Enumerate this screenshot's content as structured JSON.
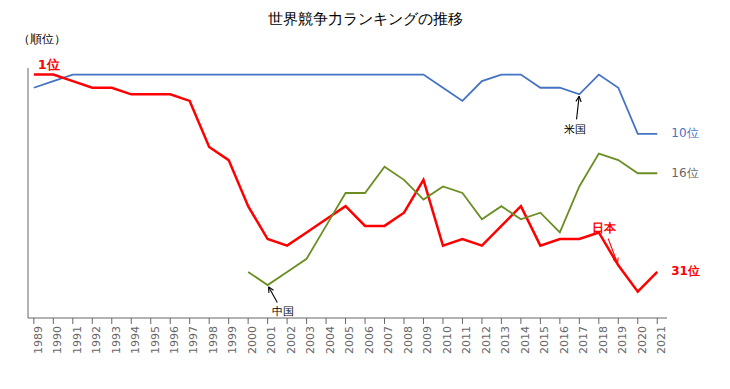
{
  "chart_data": {
    "type": "line",
    "title": "世界競争力ランキングの推移",
    "ylabel": "（順位）",
    "x": [
      1989,
      1990,
      1991,
      1992,
      1993,
      1994,
      1995,
      1996,
      1997,
      1998,
      1999,
      2000,
      2001,
      2002,
      2003,
      2004,
      2005,
      2006,
      2007,
      2008,
      2009,
      2010,
      2011,
      2012,
      2013,
      2014,
      2015,
      2016,
      2017,
      2018,
      2019,
      2020,
      2021
    ],
    "series": [
      {
        "color": "#4472c4",
        "values": [
          3,
          2,
          1,
          1,
          1,
          1,
          1,
          1,
          1,
          1,
          1,
          1,
          1,
          1,
          1,
          1,
          1,
          1,
          1,
          1,
          1,
          3,
          5,
          2,
          1,
          1,
          3,
          3,
          4,
          1,
          3,
          10,
          10
        ]
      },
      {
        "color": "#ff0000",
        "values": [
          1,
          1,
          2,
          3,
          3,
          4,
          4,
          4,
          5,
          12,
          14,
          21,
          26,
          27,
          25,
          23,
          21,
          24,
          24,
          22,
          17,
          27,
          26,
          27,
          24,
          21,
          27,
          26,
          26,
          25,
          30,
          34,
          31
        ]
      },
      {
        "color": "#6b8e23",
        "values": [
          null,
          null,
          null,
          null,
          null,
          null,
          null,
          null,
          null,
          null,
          null,
          31,
          33,
          31,
          29,
          24,
          19,
          19,
          15,
          17,
          20,
          18,
          19,
          23,
          21,
          23,
          22,
          25,
          18,
          13,
          14,
          16,
          16
        ]
      }
    ],
    "xlim": [
      1988.7,
      2021.5
    ],
    "xticks": [
      1989,
      1990,
      1991,
      1992,
      1993,
      1994,
      1995,
      1996,
      1997,
      1998,
      1999,
      2000,
      2001,
      2002,
      2003,
      2004,
      2005,
      2006,
      2007,
      2008,
      2009,
      2010,
      2011,
      2012,
      2013,
      2014,
      2015,
      2016,
      2017,
      2018,
      2019,
      2020,
      2021
    ],
    "ylim": [
      38,
      0
    ],
    "tick_labels": "x",
    "grid": false,
    "annotations": [
      {
        "text": "1位",
        "x": 1989,
        "y": 1,
        "color": "#ff0000"
      },
      {
        "text": "10位",
        "x": 2021,
        "y": 10,
        "color": "#4472c4"
      },
      {
        "text": "16位",
        "x": 2021,
        "y": 16,
        "color": "#666666"
      },
      {
        "text": "31位",
        "x": 2021,
        "y": 31,
        "color": "#ff0000"
      },
      {
        "text": "米国",
        "x": 2017,
        "y": 4,
        "color": "#000000"
      },
      {
        "text": "日本",
        "x": 2019,
        "y": 30,
        "color": "#ff0000"
      },
      {
        "text": "中国",
        "x": 2001,
        "y": 33,
        "color": "#000000"
      }
    ]
  }
}
